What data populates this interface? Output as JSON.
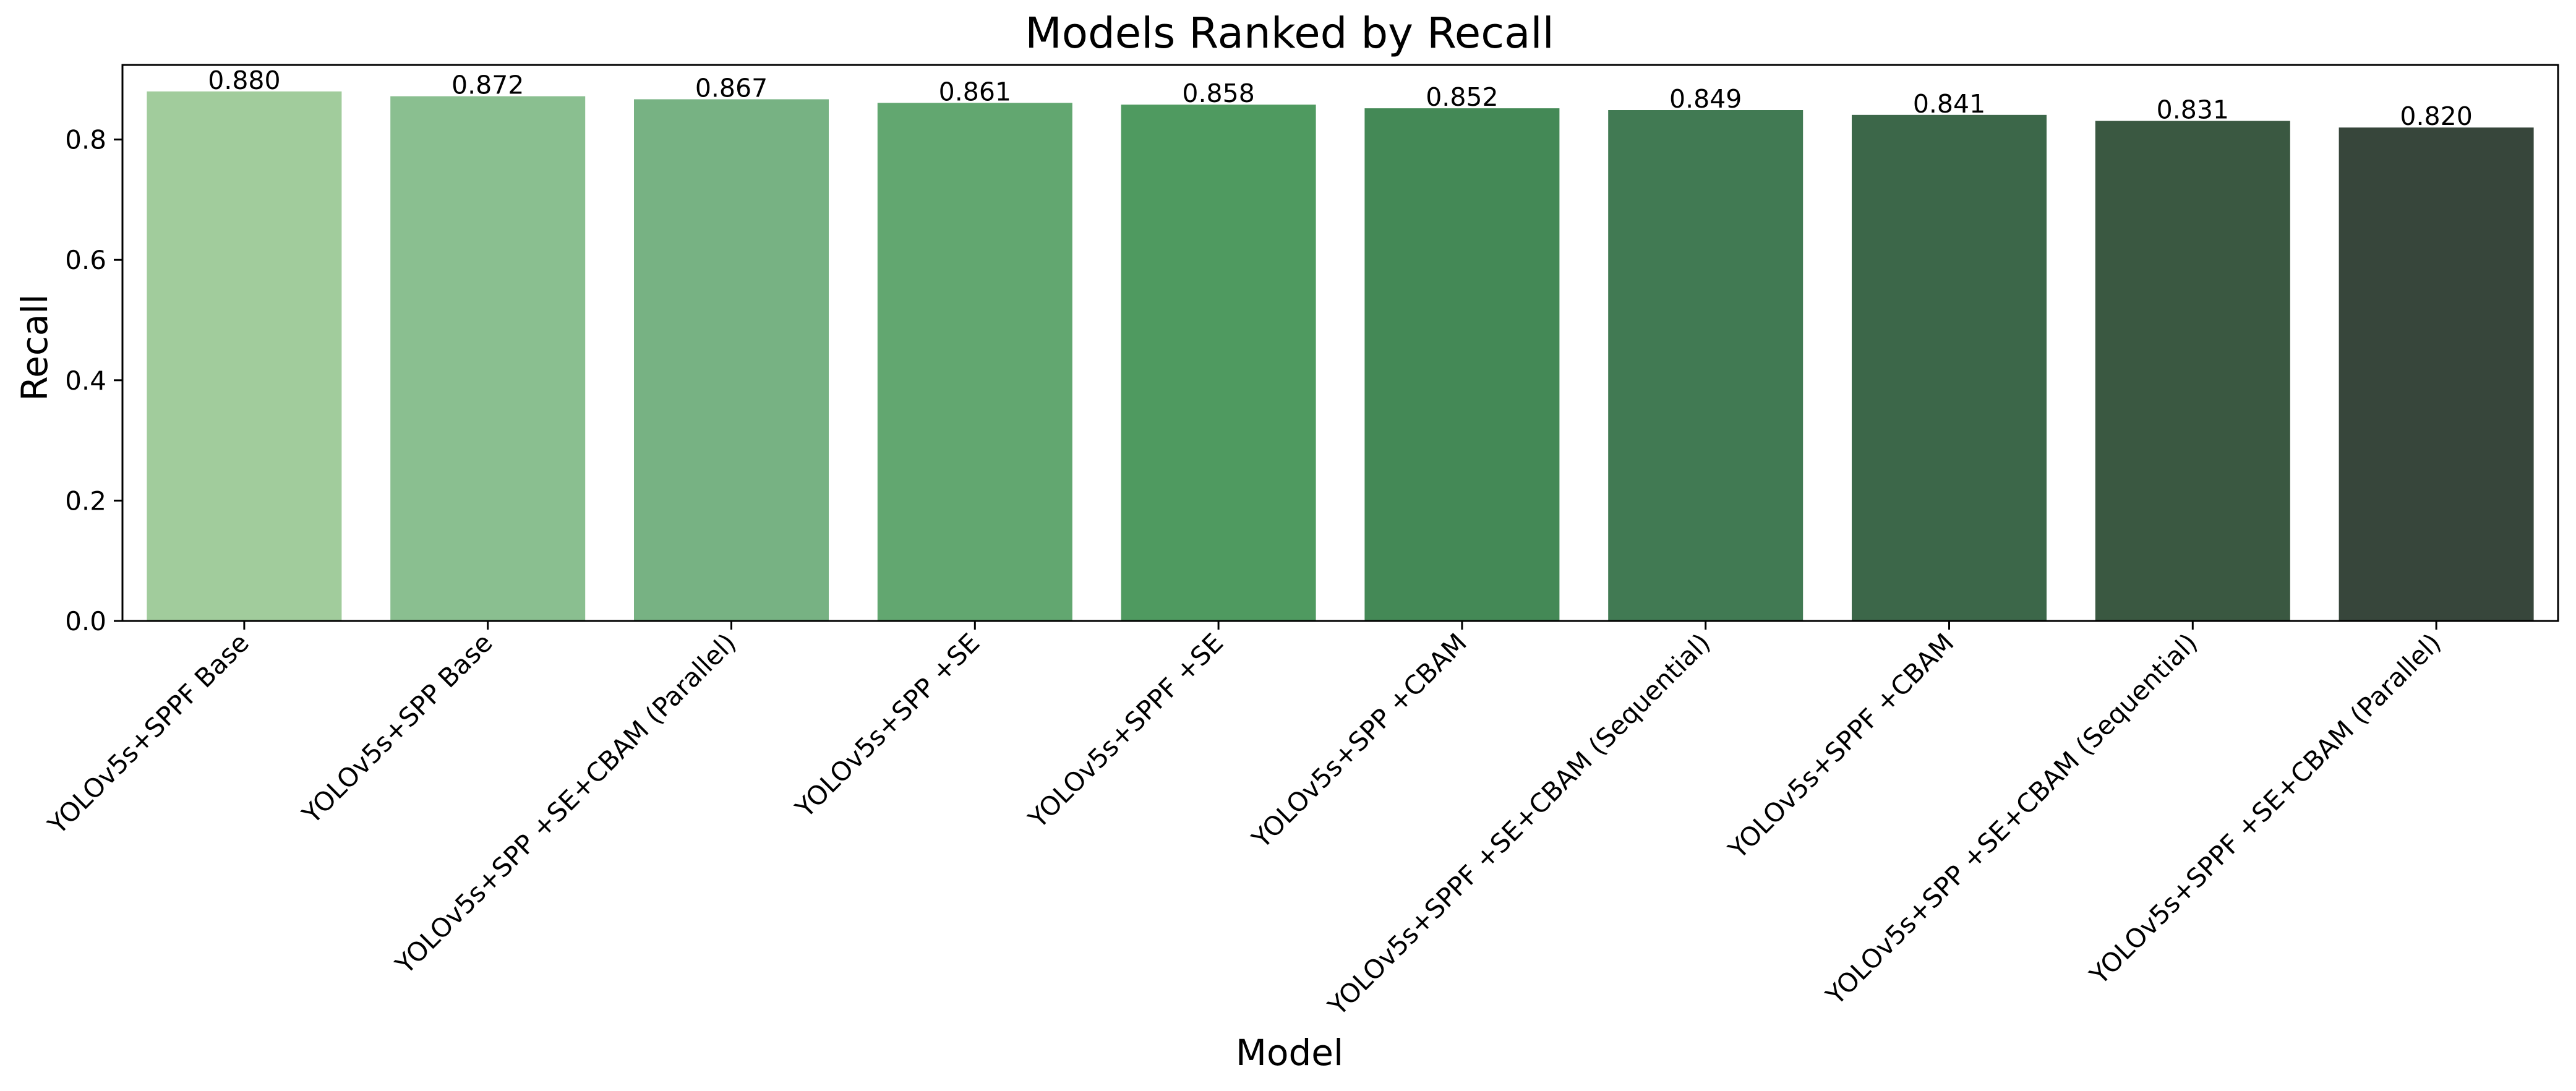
{
  "chart_data": {
    "type": "bar",
    "title": "Models Ranked by Recall",
    "xlabel": "Model",
    "ylabel": "Recall",
    "ylim": [
      0,
      0.924
    ],
    "yticks": [
      0.0,
      0.2,
      0.4,
      0.6,
      0.8
    ],
    "ytick_labels": [
      "0.0",
      "0.2",
      "0.4",
      "0.6",
      "0.8"
    ],
    "grid": false,
    "categories": [
      "YOLOv5s+SPPF Base",
      "YOLOv5s+SPP Base",
      "YOLOv5s+SPP +SE+CBAM (Parallel)",
      "YOLOv5s+SPP +SE",
      "YOLOv5s+SPPF +SE",
      "YOLOv5s+SPP +CBAM",
      "YOLOv5s+SPPF +SE+CBAM (Sequential)",
      "YOLOv5s+SPPF +CBAM",
      "YOLOv5s+SPP +SE+CBAM (Sequential)",
      "YOLOv5s+SPPF +SE+CBAM (Parallel)"
    ],
    "values": [
      0.88,
      0.872,
      0.867,
      0.861,
      0.858,
      0.852,
      0.849,
      0.841,
      0.831,
      0.82
    ],
    "value_labels": [
      "0.880",
      "0.872",
      "0.867",
      "0.861",
      "0.858",
      "0.852",
      "0.849",
      "0.841",
      "0.831",
      "0.820"
    ],
    "colors": [
      "#a1cc9c",
      "#8abf90",
      "#77b283",
      "#62a770",
      "#4f9a60",
      "#448956",
      "#417a53",
      "#3c6749",
      "#3a5841",
      "#37463b"
    ]
  }
}
